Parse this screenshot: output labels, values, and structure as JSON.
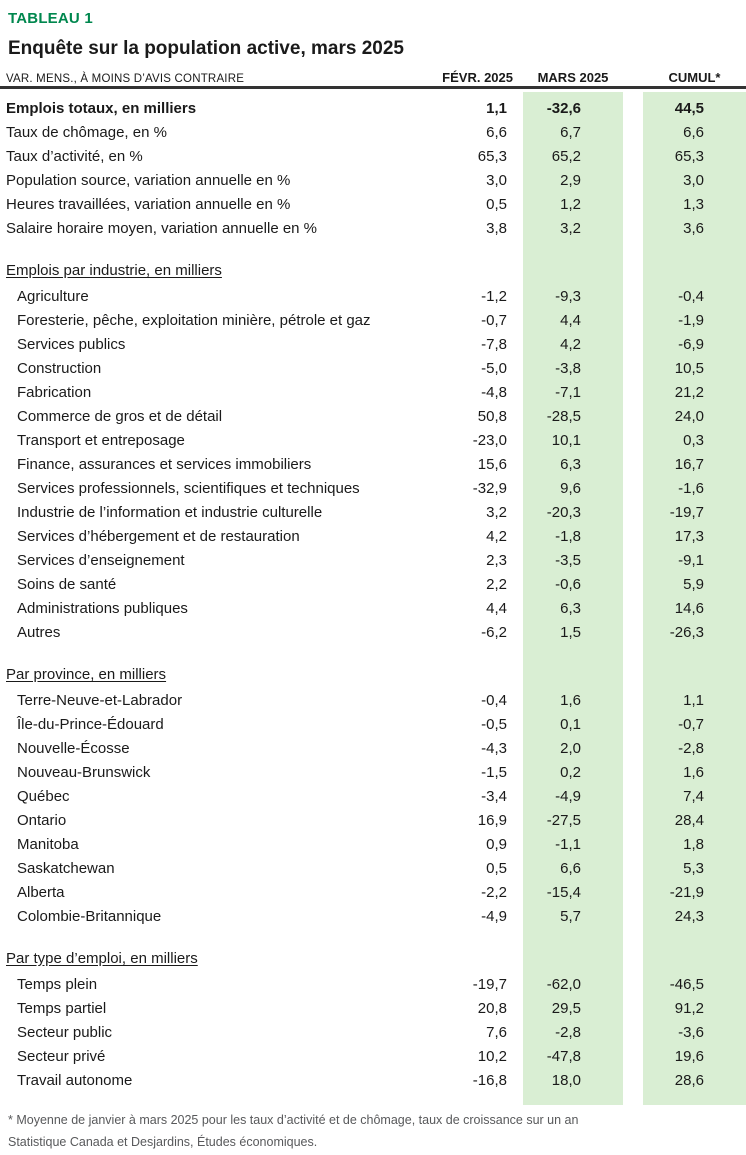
{
  "header": {
    "table_label": "TABLEAU 1",
    "title": "Enquête sur la population active, mars 2025",
    "row_header": "VAR. MENS., À MOINS D’AVIS CONTRAIRE",
    "columns": [
      "FÉVR. 2025",
      "MARS 2025",
      "CUMUL*"
    ]
  },
  "colors": {
    "brand_green": "#00874E",
    "band_green": "#D9EED3",
    "text": "#1A1A1A",
    "rule": "#333333",
    "footnote_gray": "#58595B"
  },
  "table": {
    "sections": [
      {
        "heading": null,
        "rows": [
          {
            "label": "Emplois totaux, en milliers",
            "bold": true,
            "values": [
              "1,1",
              "-32,6",
              "44,5"
            ]
          },
          {
            "label": "Taux de chômage, en %",
            "values": [
              "6,6",
              "6,7",
              "6,6"
            ]
          },
          {
            "label": "Taux d’activité, en %",
            "values": [
              "65,3",
              "65,2",
              "65,3"
            ]
          },
          {
            "label": "Population source, variation annuelle en %",
            "values": [
              "3,0",
              "2,9",
              "3,0"
            ]
          },
          {
            "label": "Heures travaillées, variation annuelle en %",
            "values": [
              "0,5",
              "1,2",
              "1,3"
            ]
          },
          {
            "label": "Salaire horaire moyen, variation annuelle en %",
            "values": [
              "3,8",
              "3,2",
              "3,6"
            ]
          }
        ]
      },
      {
        "heading": "Emplois par industrie, en milliers",
        "rows": [
          {
            "label": "Agriculture",
            "values": [
              "-1,2",
              "-9,3",
              "-0,4"
            ]
          },
          {
            "label": "Foresterie, pêche, exploitation minière, pétrole et gaz",
            "values": [
              "-0,7",
              "4,4",
              "-1,9"
            ]
          },
          {
            "label": "Services publics",
            "values": [
              "-7,8",
              "4,2",
              "-6,9"
            ]
          },
          {
            "label": "Construction",
            "values": [
              "-5,0",
              "-3,8",
              "10,5"
            ]
          },
          {
            "label": "Fabrication",
            "values": [
              "-4,8",
              "-7,1",
              "21,2"
            ]
          },
          {
            "label": "Commerce de gros et de détail",
            "values": [
              "50,8",
              "-28,5",
              "24,0"
            ]
          },
          {
            "label": "Transport et entreposage",
            "values": [
              "-23,0",
              "10,1",
              "0,3"
            ]
          },
          {
            "label": "Finance, assurances et services immobiliers",
            "values": [
              "15,6",
              "6,3",
              "16,7"
            ]
          },
          {
            "label": "Services professionnels, scientifiques et techniques",
            "values": [
              "-32,9",
              "9,6",
              "-1,6"
            ]
          },
          {
            "label": "Industrie de l’information et industrie culturelle",
            "values": [
              "3,2",
              "-20,3",
              "-19,7"
            ]
          },
          {
            "label": "Services d’hébergement et de restauration",
            "values": [
              "4,2",
              "-1,8",
              "17,3"
            ]
          },
          {
            "label": "Services d’enseignement",
            "values": [
              "2,3",
              "-3,5",
              "-9,1"
            ]
          },
          {
            "label": "Soins de santé",
            "values": [
              "2,2",
              "-0,6",
              "5,9"
            ]
          },
          {
            "label": "Administrations publiques",
            "values": [
              "4,4",
              "6,3",
              "14,6"
            ]
          },
          {
            "label": "Autres",
            "values": [
              "-6,2",
              "1,5",
              "-26,3"
            ]
          }
        ]
      },
      {
        "heading": "Par province, en milliers",
        "rows": [
          {
            "label": "Terre-Neuve-et-Labrador",
            "values": [
              "-0,4",
              "1,6",
              "1,1"
            ]
          },
          {
            "label": "Île-du-Prince-Édouard",
            "values": [
              "-0,5",
              "0,1",
              "-0,7"
            ]
          },
          {
            "label": "Nouvelle-Écosse",
            "values": [
              "-4,3",
              "2,0",
              "-2,8"
            ]
          },
          {
            "label": "Nouveau-Brunswick",
            "values": [
              "-1,5",
              "0,2",
              "1,6"
            ]
          },
          {
            "label": "Québec",
            "values": [
              "-3,4",
              "-4,9",
              "7,4"
            ]
          },
          {
            "label": "Ontario",
            "values": [
              "16,9",
              "-27,5",
              "28,4"
            ]
          },
          {
            "label": "Manitoba",
            "values": [
              "0,9",
              "-1,1",
              "1,8"
            ]
          },
          {
            "label": "Saskatchewan",
            "values": [
              "0,5",
              "6,6",
              "5,3"
            ]
          },
          {
            "label": "Alberta",
            "values": [
              "-2,2",
              "-15,4",
              "-21,9"
            ]
          },
          {
            "label": "Colombie-Britannique",
            "values": [
              "-4,9",
              "5,7",
              "24,3"
            ]
          }
        ]
      },
      {
        "heading": "Par type d’emploi, en milliers",
        "rows": [
          {
            "label": "Temps plein",
            "values": [
              "-19,7",
              "-62,0",
              "-46,5"
            ]
          },
          {
            "label": "Temps partiel",
            "values": [
              "20,8",
              "29,5",
              "91,2"
            ]
          },
          {
            "label": "Secteur public",
            "values": [
              "7,6",
              "-2,8",
              "-3,6"
            ]
          },
          {
            "label": "Secteur privé",
            "values": [
              "10,2",
              "-47,8",
              "19,6"
            ]
          },
          {
            "label": "Travail autonome",
            "values": [
              "-16,8",
              "18,0",
              "28,6"
            ]
          }
        ]
      }
    ]
  },
  "footnotes": [
    "* Moyenne de janvier à mars 2025 pour les taux d’activité et de chômage, taux de croissance sur un an",
    "Statistique Canada et Desjardins, Études économiques."
  ]
}
